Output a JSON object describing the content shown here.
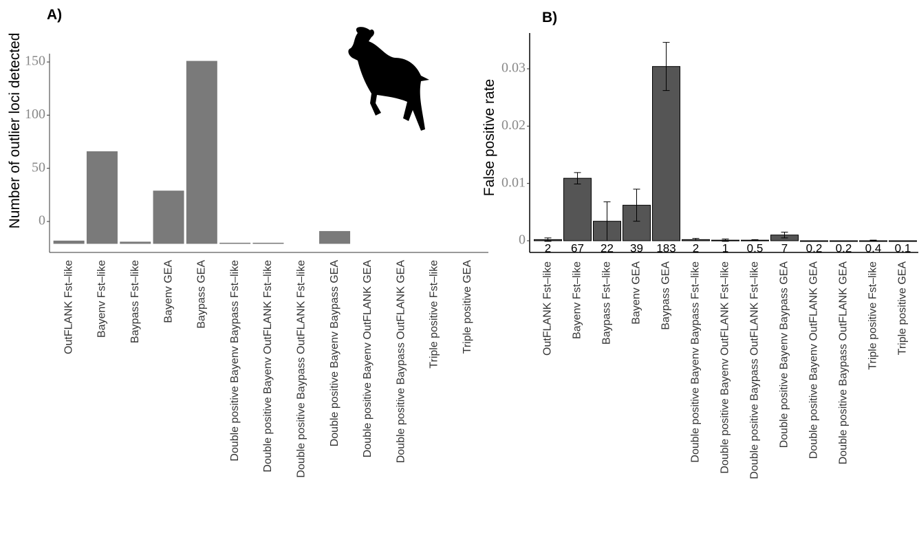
{
  "chart_data": [
    {
      "type": "bar",
      "title": "A)",
      "y_label": "Number of outlier loci detected",
      "categories": [
        "OutFLANK Fst–like",
        "Bayenv Fst–like",
        "Baypass Fst–like",
        "Bayenv GEA",
        "Baypass GEA",
        "Double positive Bayenv Baypass Fst–like",
        "Double positive Bayenv OutFLANK Fst–like",
        "Double positive Baypass OutFLANK Fst–like",
        "Double positive Bayenv Baypass GEA",
        "Double positive Bayenv OutFLANK GEA",
        "Double positive Baypass OutFLANK GEA",
        "Triple positive Fst–like",
        "Triple positive GEA"
      ],
      "values": [
        -18,
        66,
        -19,
        29,
        151,
        -20,
        -20,
        null,
        -9,
        null,
        null,
        null,
        null
      ],
      "color": "#7a7a7a",
      "ylim": [
        -21,
        156
      ],
      "yticks": [
        0,
        50,
        100,
        150
      ]
    },
    {
      "type": "errorbar-bar",
      "title": "B)",
      "y_label": "False positive rate",
      "categories": [
        "OutFLANK Fst–like",
        "Bayenv Fst–like",
        "Baypass Fst–like",
        "Bayenv GEA",
        "Baypass GEA",
        "Double positive Bayenv Baypass Fst–like",
        "Double positive Bayenv OutFLANK Fst–like",
        "Double positive Baypass OutFLANK Fst–like",
        "Double positive Bayenv Baypass GEA",
        "Double positive Bayenv OutFLANK GEA",
        "Double positive Baypass OutFLANK GEA",
        "Triple positive Fst–like",
        "Triple positive GEA"
      ],
      "values": [
        0.0002,
        0.0109,
        0.0034,
        0.0062,
        0.0304,
        0.0002,
        0.0001,
        0.0001,
        0.001,
        0,
        0,
        0,
        0
      ],
      "errors": [
        0.0003,
        0.001,
        0.0034,
        0.0028,
        0.0042,
        0.0002,
        0.0002,
        0.0001,
        0.0005,
        0,
        0,
        0.0001,
        0
      ],
      "counts": [
        2,
        67,
        22,
        39,
        183,
        2,
        1,
        0.5,
        7,
        0.2,
        0.2,
        0.4,
        0.1
      ],
      "color": "#555555",
      "ylim": [
        -0.002,
        0.0355
      ],
      "yticks": [
        0,
        0.01,
        0.02,
        0.03
      ]
    }
  ]
}
